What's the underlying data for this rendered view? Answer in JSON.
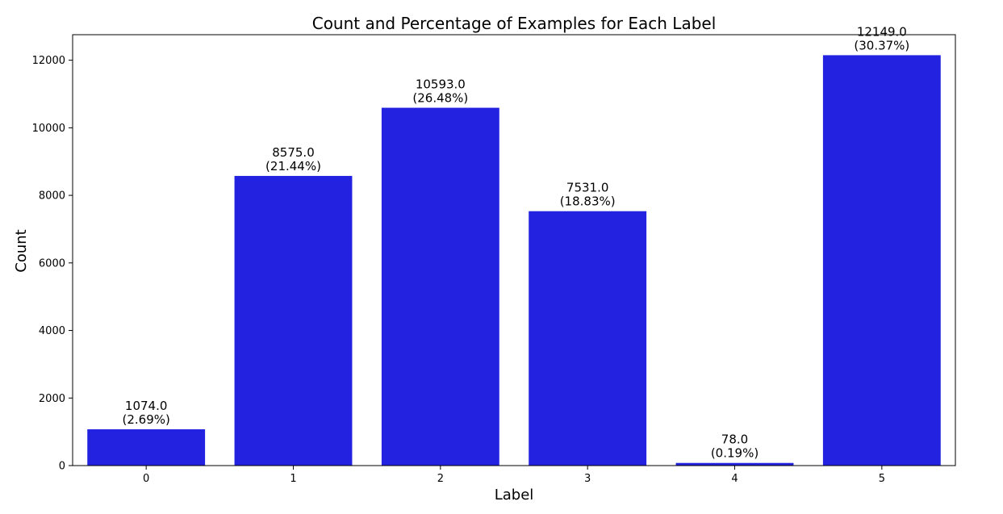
{
  "chart_data": {
    "type": "bar",
    "title": "Count and Percentage of Examples for Each Label",
    "xlabel": "Label",
    "ylabel": "Count",
    "categories": [
      "0",
      "1",
      "2",
      "3",
      "4",
      "5"
    ],
    "values": [
      1074.0,
      8575.0,
      10593.0,
      7531.0,
      78.0,
      12149.0
    ],
    "value_labels": [
      "1074.0",
      "8575.0",
      "10593.0",
      "7531.0",
      "78.0",
      "12149.0"
    ],
    "percent_labels": [
      "(2.69%)",
      "(21.44%)",
      "(26.48%)",
      "(18.83%)",
      "(0.19%)",
      "(30.37%)"
    ],
    "y_ticks": [
      0,
      2000,
      4000,
      6000,
      8000,
      10000,
      12000
    ],
    "ylim": [
      0,
      12756
    ],
    "bar_color": "#2222e0",
    "grid": false,
    "legend": "none"
  }
}
